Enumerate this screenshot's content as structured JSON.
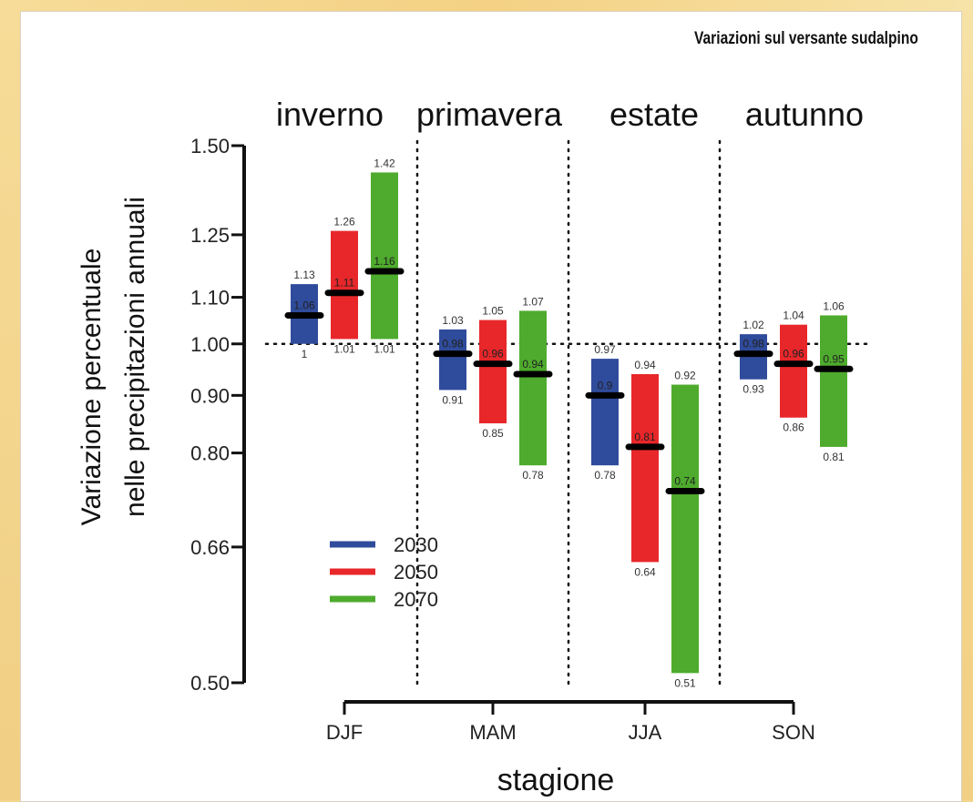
{
  "header": {
    "title": "Variazioni sul versante sudalpino"
  },
  "chart_data": {
    "type": "bar",
    "categories": [
      "DJF",
      "MAM",
      "JJA",
      "SON"
    ],
    "season_labels": [
      "inverno",
      "primavera",
      "estate",
      "autunno"
    ],
    "xlabel": "stagione",
    "ylabel": [
      "Variazione percentuale",
      "nelle precipitazioni annuali"
    ],
    "yscale": "log",
    "ylim": [
      0.5,
      1.5
    ],
    "yticks": [
      "1.50",
      "1.25",
      "1.10",
      "1.00",
      "0.90",
      "0.80",
      "0.66",
      "0.50"
    ],
    "reference_line": 1.0,
    "legend": {
      "position": "bottom-left",
      "entries": [
        "2030",
        "2050",
        "2070"
      ]
    },
    "series": [
      {
        "name": "2030",
        "color": "#2f4b9b",
        "low": [
          1.0,
          0.91,
          0.78,
          0.93
        ],
        "median": [
          1.06,
          0.98,
          0.9,
          0.98
        ],
        "high": [
          1.13,
          1.03,
          0.97,
          1.02
        ],
        "labels": {
          "low": [
            "1",
            "0.91",
            "0.78",
            "0.93"
          ],
          "median": [
            "1.06",
            "0.98",
            "0.9",
            "0.98"
          ],
          "high": [
            "1.13",
            "1.03",
            "0.97",
            "1.02"
          ]
        }
      },
      {
        "name": "2050",
        "color": "#e8272a",
        "low": [
          1.01,
          0.85,
          0.64,
          0.86
        ],
        "median": [
          1.11,
          0.96,
          0.81,
          0.96
        ],
        "high": [
          1.26,
          1.05,
          0.94,
          1.04
        ],
        "labels": {
          "low": [
            "1.01",
            "0.85",
            "0.64",
            "0.86"
          ],
          "median": [
            "1.11",
            "0.96",
            "0.81",
            "0.96"
          ],
          "high": [
            "1.26",
            "1.05",
            "0.94",
            "1.04"
          ]
        }
      },
      {
        "name": "2070",
        "color": "#4eab2d",
        "low": [
          1.01,
          0.78,
          0.51,
          0.81
        ],
        "median": [
          1.16,
          0.94,
          0.74,
          0.95
        ],
        "high": [
          1.42,
          1.07,
          0.92,
          1.06
        ],
        "labels": {
          "low": [
            "1.01",
            "0.78",
            "0.51",
            "0.81"
          ],
          "median": [
            "1.16",
            "0.94",
            "0.74",
            "0.95"
          ],
          "high": [
            "1.42",
            "1.07",
            "0.92",
            "1.06"
          ]
        }
      }
    ]
  }
}
